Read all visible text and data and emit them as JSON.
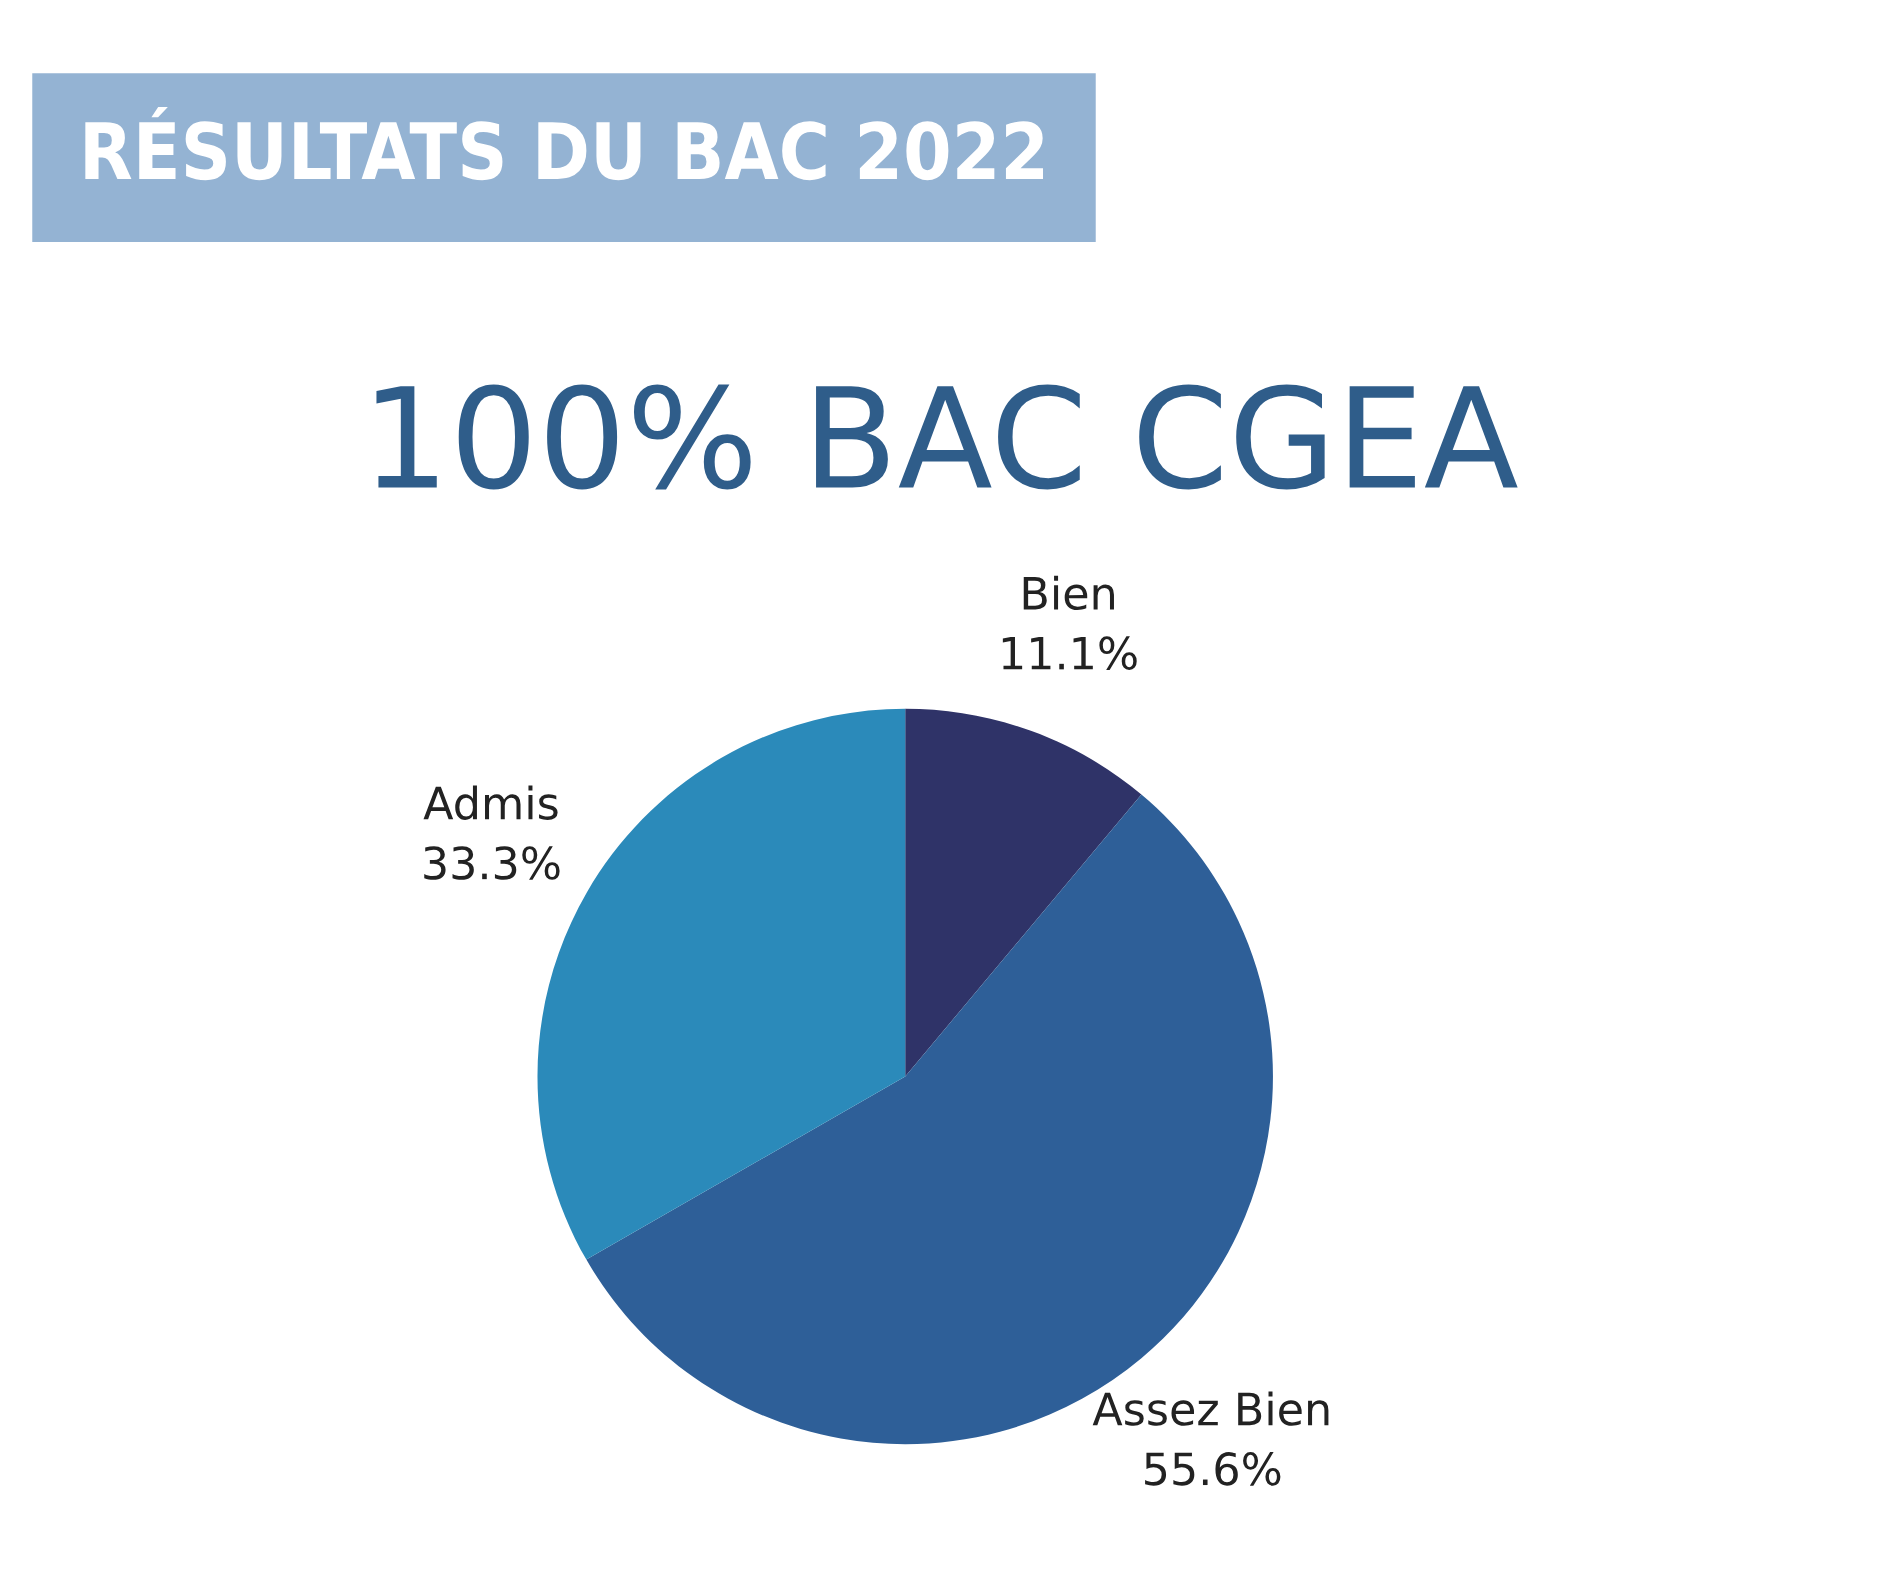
{
  "chart_data": {
    "type": "pie",
    "title": "RÉSULTATS DU BAC 2022",
    "subtitle": "100% BAC CGEA",
    "categories": [
      "Bien",
      "Assez Bien",
      "Admis"
    ],
    "values": [
      11.1,
      55.6,
      33.3
    ],
    "colors": [
      "#2f3368",
      "#2e5f98",
      "#2b8aba"
    ],
    "value_labels": [
      "11.1%",
      "55.6%",
      "33.3%"
    ]
  }
}
